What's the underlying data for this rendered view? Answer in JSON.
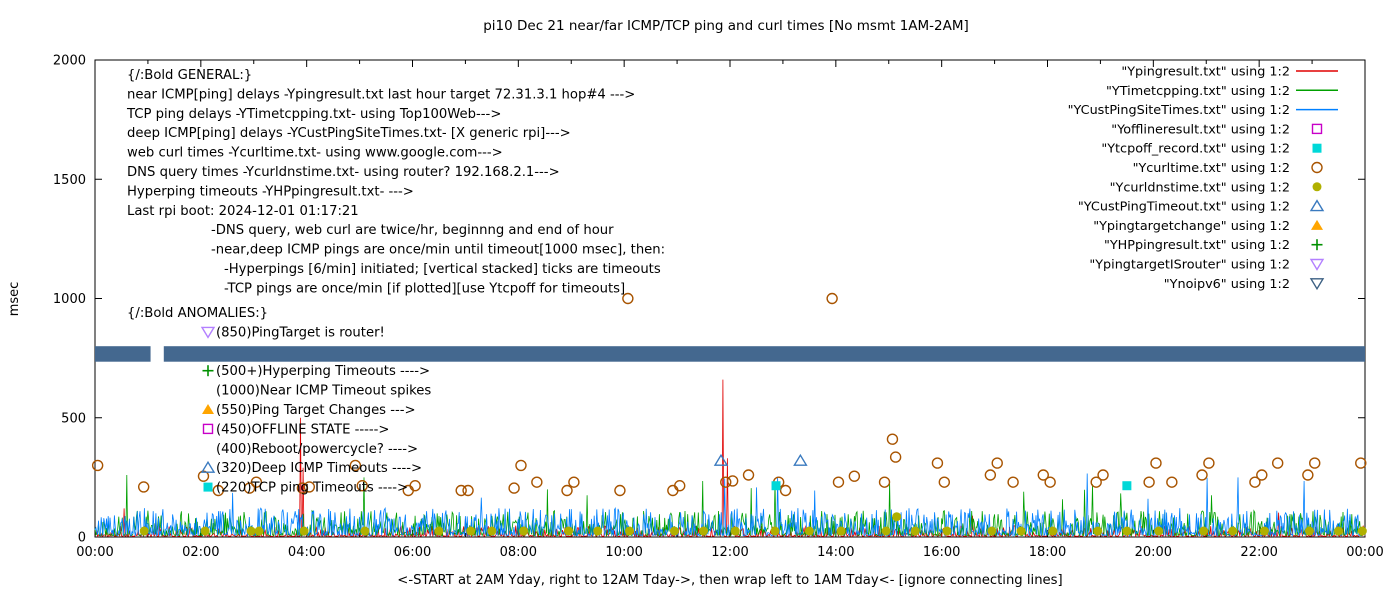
{
  "chart_data": {
    "type": "line",
    "title": "pi10 Dec 21  near/far ICMP/TCP ping and curl times [No msmt 1AM-2AM]",
    "xlabel": "<-START at 2AM Yday, right to 12AM Tday->, then wrap left to 1AM Tday<- [ignore connecting lines]",
    "ylabel": "msec",
    "x_hours": [
      0,
      24
    ],
    "ylim": [
      0,
      2000
    ],
    "x_major_tick_hours": [
      0,
      2,
      4,
      6,
      8,
      10,
      12,
      14,
      16,
      18,
      20,
      22,
      24
    ],
    "x_major_tick_labels": [
      "00:00",
      "02:00",
      "04:00",
      "06:00",
      "08:00",
      "10:00",
      "12:00",
      "14:00",
      "16:00",
      "18:00",
      "20:00",
      "22:00",
      "00:00"
    ],
    "x_minor_tick_hours": [
      1,
      3,
      5,
      7,
      9,
      11,
      13,
      15,
      17,
      19,
      21,
      23
    ],
    "y_tick_values": [
      0,
      500,
      1000,
      1500,
      2000
    ],
    "y_tick_labels": [
      "0",
      "500",
      "1000",
      "1500",
      "2000"
    ],
    "legend": [
      {
        "label": "\"Ypingresult.txt\" using 1:2",
        "marker": "line",
        "color": "#e00000"
      },
      {
        "label": "\"YTimetcpping.txt\" using 1:2",
        "marker": "line",
        "color": "#00a000"
      },
      {
        "label": "\"YCustPingSiteTimes.txt\" using 1:2",
        "marker": "line",
        "color": "#0080ff"
      },
      {
        "label": "\"Yofflineresult.txt\" using 1:2",
        "marker": "square-open",
        "color": "#c800c8"
      },
      {
        "label": "\"Ytcpoff_record.txt\" using 1:2",
        "marker": "square-filled",
        "color": "#00d8d8"
      },
      {
        "label": "\"Ycurltime.txt\" using 1:2",
        "marker": "circle-open",
        "color": "#a85400"
      },
      {
        "label": "\"Ycurldnstime.txt\" using 1:2",
        "marker": "circle-filled",
        "color": "#b0b000"
      },
      {
        "label": "\"YCustPingTimeout.txt\" using 1:2",
        "marker": "triangle-up-open",
        "color": "#3a7abf"
      },
      {
        "label": "\"Ypingtargetchange\" using 1:2",
        "marker": "triangle-up-filled",
        "color": "#ffa500"
      },
      {
        "label": "\"YHPpingresult.txt\" using 1:2",
        "marker": "plus",
        "color": "#009000"
      },
      {
        "label": "\"YpingtargetISrouter\" using 1:2",
        "marker": "triangle-down-open",
        "color": "#b380ff"
      },
      {
        "label": "\"Ynoipv6\" using 1:2",
        "marker": "triangle-down-open",
        "color": "#3b5f82"
      }
    ],
    "noise_series": [
      {
        "name": "Ypingresult",
        "color": "#e00000",
        "seed": 11,
        "base": 3,
        "pow": 4.0,
        "amp": 45,
        "rare_prob": 0.002,
        "rare_base": 60,
        "rare_span": 60,
        "spikes": [
          [
            0.55,
            120
          ],
          [
            3.88,
            500
          ],
          [
            3.93,
            290
          ],
          [
            11.87,
            660
          ],
          [
            11.95,
            330
          ]
        ]
      },
      {
        "name": "YTimetcpping",
        "color": "#00a000",
        "seed": 22,
        "base": 6,
        "pow": 2.6,
        "amp": 105,
        "rare_prob": 0.004,
        "rare_base": 140,
        "rare_span": 110,
        "spikes": [
          [
            0.6,
            260
          ],
          [
            5.08,
            250
          ],
          [
            9.3,
            175
          ],
          [
            12.4,
            205
          ],
          [
            15.02,
            235
          ],
          [
            17.55,
            190
          ],
          [
            21.1,
            175
          ]
        ]
      },
      {
        "name": "YCustPingSiteTimes",
        "color": "#0080ff",
        "seed": 33,
        "base": 6,
        "pow": 2.6,
        "amp": 115,
        "rare_prob": 0.004,
        "rare_base": 140,
        "rare_span": 140,
        "spikes": [
          [
            2.6,
            185
          ],
          [
            7.3,
            165
          ],
          [
            11.9,
            245
          ],
          [
            13.6,
            195
          ],
          [
            19.9,
            160
          ],
          [
            21.6,
            250
          ],
          [
            22.85,
            235
          ]
        ]
      }
    ],
    "scatter_series": [
      {
        "name": "Ycurltime",
        "marker": "circle-open",
        "color": "#a85400",
        "points": [
          [
            0.05,
            300
          ],
          [
            0.92,
            210
          ],
          [
            2.05,
            255
          ],
          [
            2.33,
            195
          ],
          [
            2.92,
            205
          ],
          [
            3.05,
            230
          ],
          [
            3.92,
            205
          ],
          [
            4.05,
            210
          ],
          [
            4.92,
            300
          ],
          [
            5.05,
            215
          ],
          [
            5.92,
            195
          ],
          [
            6.05,
            215
          ],
          [
            6.92,
            195
          ],
          [
            7.05,
            195
          ],
          [
            7.92,
            205
          ],
          [
            8.05,
            300
          ],
          [
            8.35,
            230
          ],
          [
            8.92,
            195
          ],
          [
            9.05,
            230
          ],
          [
            9.92,
            195
          ],
          [
            10.07,
            1000
          ],
          [
            10.92,
            195
          ],
          [
            11.05,
            215
          ],
          [
            11.92,
            230
          ],
          [
            12.05,
            235
          ],
          [
            12.35,
            260
          ],
          [
            12.92,
            230
          ],
          [
            13.05,
            195
          ],
          [
            13.93,
            1000
          ],
          [
            14.05,
            230
          ],
          [
            14.35,
            255
          ],
          [
            14.92,
            230
          ],
          [
            15.07,
            410
          ],
          [
            15.13,
            335
          ],
          [
            15.92,
            310
          ],
          [
            16.05,
            230
          ],
          [
            16.92,
            260
          ],
          [
            17.05,
            310
          ],
          [
            17.35,
            230
          ],
          [
            17.92,
            260
          ],
          [
            18.05,
            230
          ],
          [
            18.92,
            230
          ],
          [
            19.05,
            260
          ],
          [
            19.92,
            230
          ],
          [
            20.05,
            310
          ],
          [
            20.35,
            230
          ],
          [
            20.92,
            260
          ],
          [
            21.05,
            310
          ],
          [
            21.92,
            230
          ],
          [
            22.05,
            260
          ],
          [
            22.35,
            310
          ],
          [
            22.92,
            260
          ],
          [
            23.05,
            310
          ],
          [
            23.92,
            310
          ]
        ]
      },
      {
        "name": "Ycurldnstime",
        "marker": "circle-filled",
        "color": "#b0b000",
        "points": [
          [
            0.93,
            25
          ],
          [
            2.08,
            25
          ],
          [
            2.95,
            25
          ],
          [
            3.1,
            25
          ],
          [
            3.95,
            25
          ],
          [
            5.1,
            25
          ],
          [
            6.5,
            25
          ],
          [
            7.1,
            25
          ],
          [
            7.5,
            25
          ],
          [
            8.1,
            25
          ],
          [
            8.95,
            25
          ],
          [
            9.5,
            25
          ],
          [
            10.1,
            25
          ],
          [
            10.95,
            25
          ],
          [
            11.5,
            25
          ],
          [
            12.1,
            25
          ],
          [
            12.85,
            25
          ],
          [
            13.5,
            25
          ],
          [
            14.1,
            25
          ],
          [
            14.95,
            25
          ],
          [
            15.15,
            85
          ],
          [
            15.5,
            25
          ],
          [
            16.1,
            25
          ],
          [
            16.95,
            25
          ],
          [
            17.5,
            25
          ],
          [
            18.1,
            25
          ],
          [
            18.95,
            25
          ],
          [
            19.5,
            25
          ],
          [
            20.1,
            25
          ],
          [
            20.95,
            25
          ],
          [
            21.5,
            25
          ],
          [
            22.1,
            25
          ],
          [
            22.95,
            25
          ],
          [
            23.5,
            25
          ],
          [
            23.95,
            25
          ]
        ]
      },
      {
        "name": "Ytcpoff_record",
        "marker": "square-filled",
        "color": "#00d8d8",
        "points": [
          [
            12.87,
            215
          ],
          [
            19.5,
            215
          ]
        ]
      },
      {
        "name": "YCustPingTimeout",
        "marker": "triangle-up-open",
        "color": "#3a7abf",
        "points": [
          [
            11.83,
            320
          ],
          [
            13.33,
            320
          ]
        ]
      }
    ],
    "band": {
      "name": "Ynoipv6",
      "color": "#44688f",
      "y_low": 735,
      "y_high": 800,
      "gap_hours": [
        1.05,
        1.3
      ]
    },
    "annotations": {
      "general": {
        "lines": [
          {
            "text": "{/:Bold GENERAL:}",
            "indent": 0
          },
          {
            "text": "near ICMP[ping] delays -Ypingresult.txt last hour target 72.31.3.1 hop#4 --->",
            "indent": 0
          },
          {
            "text": "TCP ping delays -YTimetcpping.txt- using Top100Web--->",
            "indent": 0
          },
          {
            "text": "deep ICMP[ping] delays -YCustPingSiteTimes.txt- [X generic rpi]--->",
            "indent": 0
          },
          {
            "text": "web curl times -Ycurltime.txt- using www.google.com--->",
            "indent": 0
          },
          {
            "text": "DNS query times -Ycurldnstime.txt- using router? 192.168.2.1--->",
            "indent": 0
          },
          {
            "text": "Hyperping timeouts -YHPpingresult.txt- --->",
            "indent": 0
          },
          {
            "text": "Last rpi boot: 2024-12-01 01:17:21",
            "indent": 0
          },
          {
            "text": "-DNS query, web curl are twice/hr, beginnng and end of hour",
            "indent": 1
          },
          {
            "text": "-near,deep ICMP pings are once/min until timeout[1000 msec], then:",
            "indent": 1
          },
          {
            "text": "-Hyperpings [6/min] initiated; [vertical stacked] ticks are timeouts",
            "indent": 2
          },
          {
            "text": "-TCP pings are once/min [if plotted][use Ytcpoff for timeouts]",
            "indent": 2
          }
        ]
      },
      "anomalies": {
        "lines": [
          {
            "text": "{/:Bold ANOMALIES:}",
            "marker": null,
            "header": true
          },
          {
            "text": "(850)PingTarget is router!",
            "marker": "triangle-down-open",
            "color": "#b380ff"
          },
          {
            "text": "",
            "marker": null
          },
          {
            "text": "(500+)Hyperping Timeouts ---->",
            "marker": "plus",
            "color": "#009000"
          },
          {
            "text": "(1000)Near ICMP Timeout spikes",
            "marker": null
          },
          {
            "text": "(550)Ping Target Changes --->",
            "marker": "triangle-up-filled",
            "color": "#ffa500"
          },
          {
            "text": "(450)OFFLINE STATE ----->",
            "marker": "square-open",
            "color": "#c800c8"
          },
          {
            "text": "(400)Reboot/powercycle? ---->",
            "marker": null
          },
          {
            "text": "(320)Deep ICMP Timeouts ---->",
            "marker": "triangle-up-open",
            "color": "#3a7abf"
          },
          {
            "text": "(220)TCP ping Timeouts ---->",
            "marker": "square-filled",
            "color": "#00d8d8"
          }
        ]
      }
    }
  }
}
